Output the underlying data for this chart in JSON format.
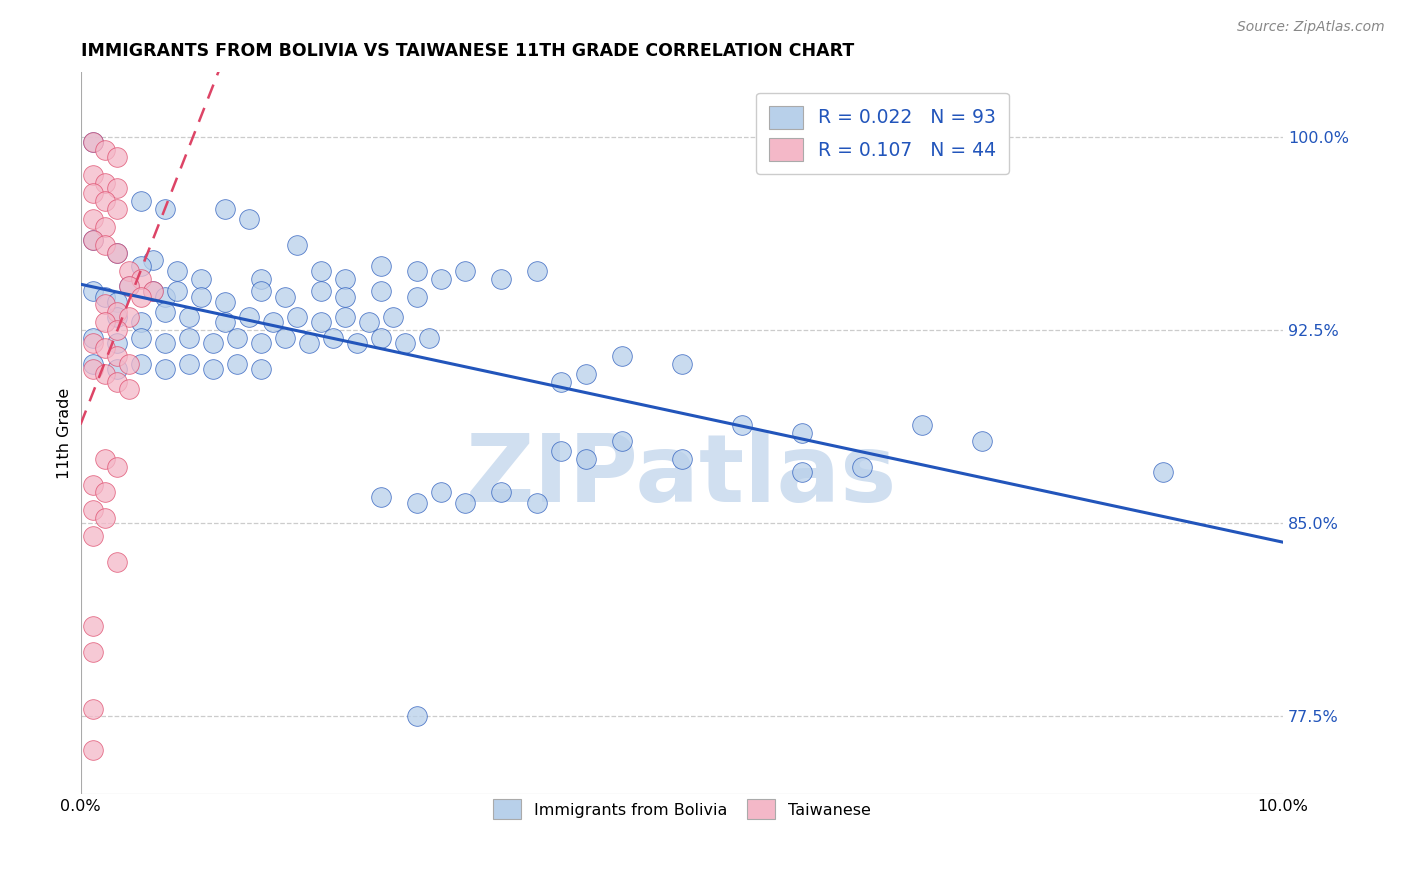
{
  "title": "IMMIGRANTS FROM BOLIVIA VS TAIWANESE 11TH GRADE CORRELATION CHART",
  "source": "Source: ZipAtlas.com",
  "ylabel": "11th Grade",
  "right_yticks": [
    0.775,
    0.85,
    0.925,
    1.0
  ],
  "right_yticklabels": [
    "77.5%",
    "85.0%",
    "92.5%",
    "100.0%"
  ],
  "legend_blue_label": "Immigrants from Bolivia",
  "legend_pink_label": "Taiwanese",
  "R_blue": 0.022,
  "N_blue": 93,
  "R_pink": 0.107,
  "N_pink": 44,
  "blue_color": "#b8d0ea",
  "pink_color": "#f4b8c8",
  "trendline_blue_color": "#2255bb",
  "trendline_pink_color": "#dd4466",
  "watermark_color": "#d0dff0",
  "xlim": [
    0.0,
    0.1
  ],
  "ylim": [
    0.745,
    1.025
  ],
  "xtick_positions": [
    0.0,
    0.025,
    0.05,
    0.075,
    0.1
  ],
  "xtick_labels": [
    "0.0%",
    "",
    "",
    "",
    "10.0%"
  ],
  "blue_points": [
    [
      0.001,
      0.998
    ],
    [
      0.005,
      0.975
    ],
    [
      0.007,
      0.972
    ],
    [
      0.012,
      0.972
    ],
    [
      0.014,
      0.968
    ],
    [
      0.018,
      0.958
    ],
    [
      0.001,
      0.96
    ],
    [
      0.003,
      0.955
    ],
    [
      0.006,
      0.952
    ],
    [
      0.005,
      0.95
    ],
    [
      0.008,
      0.948
    ],
    [
      0.01,
      0.945
    ],
    [
      0.015,
      0.945
    ],
    [
      0.02,
      0.948
    ],
    [
      0.022,
      0.945
    ],
    [
      0.025,
      0.95
    ],
    [
      0.028,
      0.948
    ],
    [
      0.03,
      0.945
    ],
    [
      0.032,
      0.948
    ],
    [
      0.035,
      0.945
    ],
    [
      0.038,
      0.948
    ],
    [
      0.001,
      0.94
    ],
    [
      0.002,
      0.938
    ],
    [
      0.003,
      0.936
    ],
    [
      0.004,
      0.942
    ],
    [
      0.006,
      0.94
    ],
    [
      0.007,
      0.938
    ],
    [
      0.008,
      0.94
    ],
    [
      0.01,
      0.938
    ],
    [
      0.012,
      0.936
    ],
    [
      0.015,
      0.94
    ],
    [
      0.017,
      0.938
    ],
    [
      0.02,
      0.94
    ],
    [
      0.022,
      0.938
    ],
    [
      0.025,
      0.94
    ],
    [
      0.028,
      0.938
    ],
    [
      0.003,
      0.93
    ],
    [
      0.005,
      0.928
    ],
    [
      0.007,
      0.932
    ],
    [
      0.009,
      0.93
    ],
    [
      0.012,
      0.928
    ],
    [
      0.014,
      0.93
    ],
    [
      0.016,
      0.928
    ],
    [
      0.018,
      0.93
    ],
    [
      0.02,
      0.928
    ],
    [
      0.022,
      0.93
    ],
    [
      0.024,
      0.928
    ],
    [
      0.026,
      0.93
    ],
    [
      0.001,
      0.922
    ],
    [
      0.003,
      0.92
    ],
    [
      0.005,
      0.922
    ],
    [
      0.007,
      0.92
    ],
    [
      0.009,
      0.922
    ],
    [
      0.011,
      0.92
    ],
    [
      0.013,
      0.922
    ],
    [
      0.015,
      0.92
    ],
    [
      0.017,
      0.922
    ],
    [
      0.019,
      0.92
    ],
    [
      0.021,
      0.922
    ],
    [
      0.023,
      0.92
    ],
    [
      0.025,
      0.922
    ],
    [
      0.027,
      0.92
    ],
    [
      0.029,
      0.922
    ],
    [
      0.001,
      0.912
    ],
    [
      0.003,
      0.91
    ],
    [
      0.005,
      0.912
    ],
    [
      0.007,
      0.91
    ],
    [
      0.009,
      0.912
    ],
    [
      0.011,
      0.91
    ],
    [
      0.013,
      0.912
    ],
    [
      0.015,
      0.91
    ],
    [
      0.04,
      0.905
    ],
    [
      0.042,
      0.908
    ],
    [
      0.045,
      0.915
    ],
    [
      0.05,
      0.912
    ],
    [
      0.055,
      0.888
    ],
    [
      0.06,
      0.885
    ],
    [
      0.07,
      0.888
    ],
    [
      0.075,
      0.882
    ],
    [
      0.04,
      0.878
    ],
    [
      0.042,
      0.875
    ],
    [
      0.045,
      0.882
    ],
    [
      0.05,
      0.875
    ],
    [
      0.06,
      0.87
    ],
    [
      0.065,
      0.872
    ],
    [
      0.025,
      0.86
    ],
    [
      0.028,
      0.858
    ],
    [
      0.03,
      0.862
    ],
    [
      0.032,
      0.858
    ],
    [
      0.035,
      0.862
    ],
    [
      0.038,
      0.858
    ],
    [
      0.09,
      0.87
    ],
    [
      0.028,
      0.775
    ]
  ],
  "pink_points": [
    [
      0.001,
      0.998
    ],
    [
      0.002,
      0.995
    ],
    [
      0.003,
      0.992
    ],
    [
      0.001,
      0.985
    ],
    [
      0.002,
      0.982
    ],
    [
      0.003,
      0.98
    ],
    [
      0.001,
      0.978
    ],
    [
      0.002,
      0.975
    ],
    [
      0.003,
      0.972
    ],
    [
      0.001,
      0.968
    ],
    [
      0.002,
      0.965
    ],
    [
      0.001,
      0.96
    ],
    [
      0.002,
      0.958
    ],
    [
      0.003,
      0.955
    ],
    [
      0.004,
      0.948
    ],
    [
      0.005,
      0.945
    ],
    [
      0.004,
      0.942
    ],
    [
      0.006,
      0.94
    ],
    [
      0.005,
      0.938
    ],
    [
      0.002,
      0.935
    ],
    [
      0.003,
      0.932
    ],
    [
      0.004,
      0.93
    ],
    [
      0.002,
      0.928
    ],
    [
      0.003,
      0.925
    ],
    [
      0.001,
      0.92
    ],
    [
      0.002,
      0.918
    ],
    [
      0.003,
      0.915
    ],
    [
      0.004,
      0.912
    ],
    [
      0.001,
      0.91
    ],
    [
      0.002,
      0.908
    ],
    [
      0.003,
      0.905
    ],
    [
      0.004,
      0.902
    ],
    [
      0.002,
      0.875
    ],
    [
      0.003,
      0.872
    ],
    [
      0.001,
      0.865
    ],
    [
      0.002,
      0.862
    ],
    [
      0.001,
      0.855
    ],
    [
      0.002,
      0.852
    ],
    [
      0.001,
      0.845
    ],
    [
      0.003,
      0.835
    ],
    [
      0.001,
      0.81
    ],
    [
      0.001,
      0.8
    ],
    [
      0.001,
      0.778
    ],
    [
      0.001,
      0.762
    ]
  ]
}
